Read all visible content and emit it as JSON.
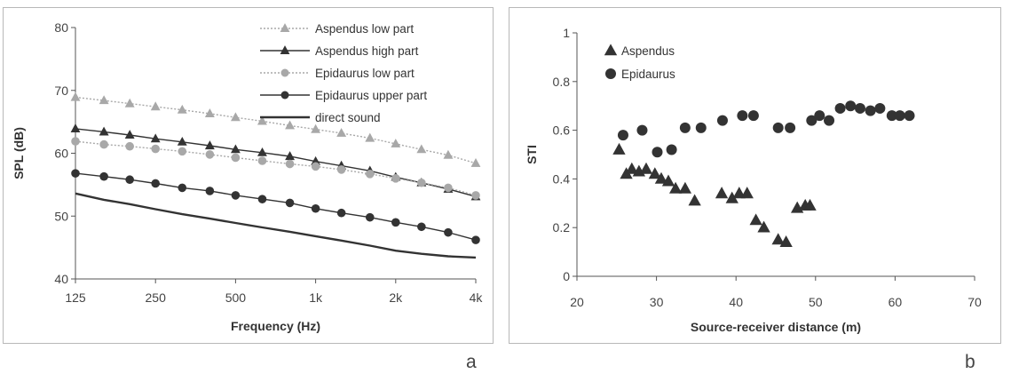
{
  "chart_data": [
    {
      "type": "line",
      "title": "",
      "xlabel": "Frequency (Hz)",
      "ylabel": "SPL (dB)",
      "x_scale": "log",
      "xlim": [
        125,
        4000
      ],
      "ylim": [
        40,
        80
      ],
      "x_ticks": [
        {
          "value": 125,
          "label": "125"
        },
        {
          "value": 250,
          "label": "250"
        },
        {
          "value": 500,
          "label": "500"
        },
        {
          "value": 1000,
          "label": "1k"
        },
        {
          "value": 2000,
          "label": "2k"
        },
        {
          "value": 4000,
          "label": "4k"
        }
      ],
      "y_ticks": [
        {
          "value": 40,
          "label": "40"
        },
        {
          "value": 50,
          "label": "50"
        },
        {
          "value": 60,
          "label": "60"
        },
        {
          "value": 70,
          "label": "70"
        },
        {
          "value": 80,
          "label": "80"
        }
      ],
      "grid": false,
      "legend_position": "top-right",
      "x": [
        125,
        160,
        200,
        250,
        315,
        400,
        500,
        630,
        800,
        1000,
        1250,
        1600,
        2000,
        2500,
        3150,
        4000
      ],
      "series": [
        {
          "name": "Aspendus low part",
          "marker": "triangle",
          "line": "dotted",
          "color": "#a8a8a8",
          "values": [
            68.9,
            68.4,
            67.9,
            67.4,
            66.9,
            66.3,
            65.7,
            65.1,
            64.4,
            63.8,
            63.2,
            62.4,
            61.5,
            60.6,
            59.7,
            58.4
          ]
        },
        {
          "name": "Aspendus high part",
          "marker": "triangle",
          "line": "solid",
          "color": "#333333",
          "values": [
            63.9,
            63.4,
            62.9,
            62.3,
            61.8,
            61.2,
            60.6,
            60.1,
            59.5,
            58.7,
            58.0,
            57.2,
            56.2,
            55.3,
            54.3,
            53.1
          ]
        },
        {
          "name": "Epidaurus low part",
          "marker": "circle",
          "line": "dotted",
          "color": "#a8a8a8",
          "values": [
            61.9,
            61.4,
            61.1,
            60.7,
            60.3,
            59.8,
            59.3,
            58.8,
            58.3,
            57.9,
            57.4,
            56.7,
            56.0,
            55.3,
            54.5,
            53.3
          ]
        },
        {
          "name": "Epidaurus upper part",
          "marker": "circle",
          "line": "solid",
          "color": "#333333",
          "values": [
            56.8,
            56.3,
            55.8,
            55.2,
            54.5,
            54.0,
            53.3,
            52.7,
            52.1,
            51.2,
            50.5,
            49.8,
            49.0,
            48.3,
            47.4,
            46.2
          ]
        },
        {
          "name": "direct sound",
          "marker": "none",
          "line": "solid-thick",
          "color": "#333333",
          "values": [
            53.6,
            52.6,
            51.9,
            51.1,
            50.3,
            49.6,
            48.9,
            48.2,
            47.5,
            46.8,
            46.1,
            45.3,
            44.5,
            44.0,
            43.6,
            43.4
          ]
        }
      ]
    },
    {
      "type": "scatter",
      "title": "",
      "xlabel": "Source-receiver distance (m)",
      "ylabel": "STI",
      "xlim": [
        20,
        70
      ],
      "ylim": [
        0,
        1
      ],
      "x_ticks": [
        {
          "value": 20,
          "label": "20"
        },
        {
          "value": 30,
          "label": "30"
        },
        {
          "value": 40,
          "label": "40"
        },
        {
          "value": 50,
          "label": "50"
        },
        {
          "value": 60,
          "label": "60"
        },
        {
          "value": 70,
          "label": "70"
        }
      ],
      "y_ticks": [
        {
          "value": 0,
          "label": "0"
        },
        {
          "value": 0.2,
          "label": "0.2"
        },
        {
          "value": 0.4,
          "label": "0.4"
        },
        {
          "value": 0.6,
          "label": "0.6"
        },
        {
          "value": 0.8,
          "label": "0.8"
        },
        {
          "value": 1,
          "label": "1"
        }
      ],
      "grid": false,
      "legend_position": "top-left",
      "series": [
        {
          "name": "Aspendus",
          "marker": "triangle",
          "color": "#333333",
          "points": [
            [
              25.3,
              0.52
            ],
            [
              26.2,
              0.42
            ],
            [
              26.9,
              0.44
            ],
            [
              27.8,
              0.43
            ],
            [
              28.7,
              0.44
            ],
            [
              29.8,
              0.42
            ],
            [
              30.6,
              0.4
            ],
            [
              31.5,
              0.39
            ],
            [
              32.4,
              0.36
            ],
            [
              33.6,
              0.36
            ],
            [
              34.8,
              0.31
            ],
            [
              38.2,
              0.34
            ],
            [
              39.5,
              0.32
            ],
            [
              40.4,
              0.34
            ],
            [
              41.4,
              0.34
            ],
            [
              42.5,
              0.23
            ],
            [
              43.5,
              0.2
            ],
            [
              45.3,
              0.15
            ],
            [
              46.3,
              0.14
            ],
            [
              47.7,
              0.28
            ],
            [
              48.7,
              0.29
            ],
            [
              49.3,
              0.29
            ]
          ]
        },
        {
          "name": "Epidaurus",
          "marker": "circle",
          "color": "#333333",
          "points": [
            [
              25.8,
              0.58
            ],
            [
              28.2,
              0.6
            ],
            [
              30.1,
              0.51
            ],
            [
              31.9,
              0.52
            ],
            [
              33.6,
              0.61
            ],
            [
              35.6,
              0.61
            ],
            [
              38.3,
              0.64
            ],
            [
              40.8,
              0.66
            ],
            [
              42.2,
              0.66
            ],
            [
              45.3,
              0.61
            ],
            [
              46.8,
              0.61
            ],
            [
              49.5,
              0.64
            ],
            [
              50.5,
              0.66
            ],
            [
              51.7,
              0.64
            ],
            [
              53.1,
              0.69
            ],
            [
              54.4,
              0.7
            ],
            [
              55.6,
              0.69
            ],
            [
              56.9,
              0.68
            ],
            [
              58.1,
              0.69
            ],
            [
              59.6,
              0.66
            ],
            [
              60.6,
              0.66
            ],
            [
              61.8,
              0.66
            ]
          ]
        }
      ]
    }
  ],
  "labels": {
    "panel_a": "a",
    "panel_b": "b"
  }
}
